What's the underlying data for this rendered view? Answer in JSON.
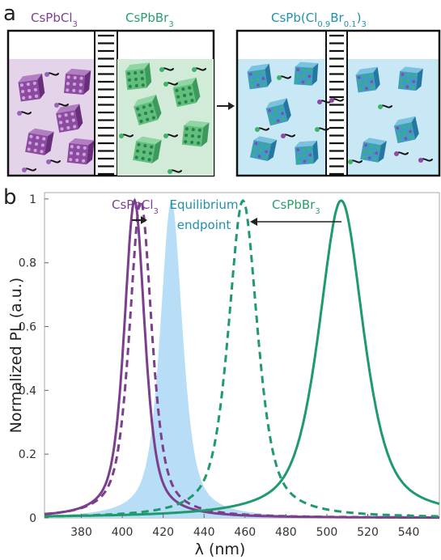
{
  "panel_a": {
    "letter": "a",
    "left_label": {
      "base": "CsPbCl",
      "sub": "3"
    },
    "mid_label": {
      "base": "CsPbBr",
      "sub": "3"
    },
    "right_label": {
      "pre": "CsPb(Cl",
      "sub1": "0.9",
      "mid": "Br",
      "sub2": "0.1",
      "post": ")",
      "sub3": "3"
    },
    "colors": {
      "purple": "#7b3f8e",
      "green": "#2a9d6c",
      "teal": "#1f8fae",
      "left_fill": "#e3d4ea",
      "mid_fill": "#d2ead8",
      "right_fill": "#c9e8f6"
    }
  },
  "panel_b": {
    "letter": "b",
    "ann_cl": {
      "base": "CsPbCl",
      "sub": "3"
    },
    "ann_br": {
      "base": "CsPbBr",
      "sub": "3"
    },
    "ann_eq1": "Equilibrium",
    "ann_eq2": "endpoint"
  },
  "chart_data": {
    "type": "line",
    "xlabel": "λ (nm)",
    "ylabel": "Normalized PL (a.u.)",
    "xlim": [
      362,
      555
    ],
    "ylim": [
      0,
      1.02
    ],
    "xticks": [
      380,
      400,
      420,
      440,
      460,
      480,
      500,
      520,
      540
    ],
    "yticks": [
      0,
      0.2,
      0.4,
      0.6,
      0.8,
      1
    ],
    "grid": false,
    "series": [
      {
        "name": "CsPbCl3",
        "style": "solid",
        "color": "#7b3f8e",
        "peak": 406,
        "fwhm": 12
      },
      {
        "name": "CsPbCl3",
        "style": "dashed",
        "color": "#7b3f8e",
        "peak": 409,
        "fwhm": 13
      },
      {
        "name": "Equilibrium endpoint",
        "style": "filled",
        "color": "#b7def6",
        "peak": 424,
        "fwhm": 13
      },
      {
        "name": "CsPbBr3",
        "style": "dashed",
        "color": "#1f9a6b",
        "peak": 459,
        "fwhm": 17
      },
      {
        "name": "CsPbBr3",
        "style": "solid",
        "color": "#1f9a6b",
        "peak": 507,
        "fwhm": 26
      }
    ]
  }
}
